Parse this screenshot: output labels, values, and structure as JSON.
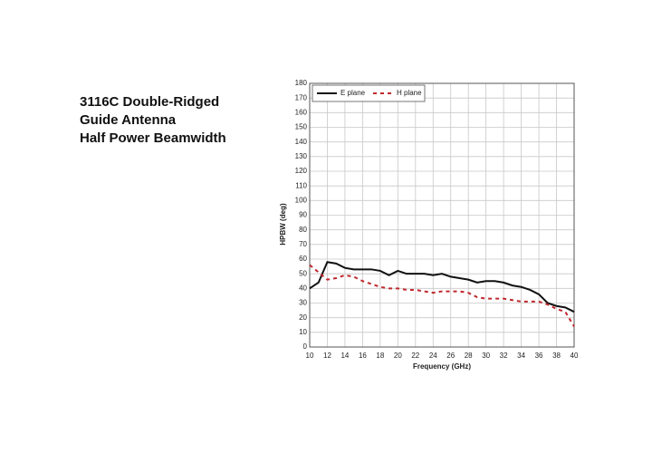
{
  "chart_data": {
    "type": "line",
    "title": [
      "3116C Double-Ridged",
      "Guide Antenna",
      "Half Power Beamwidth"
    ],
    "x_label": "Frequency (GHz)",
    "y_label": "HPBW (deg)",
    "x": [
      10,
      11,
      12,
      13,
      14,
      15,
      16,
      17,
      18,
      19,
      20,
      21,
      22,
      23,
      24,
      25,
      26,
      27,
      28,
      29,
      30,
      31,
      32,
      33,
      34,
      35,
      36,
      37,
      38,
      39,
      40
    ],
    "series": [
      {
        "name": "E plane",
        "color": "#111111",
        "dash": "solid",
        "values": [
          40,
          44,
          58,
          57,
          54,
          53,
          53,
          53,
          52,
          49,
          52,
          50,
          50,
          50,
          49,
          50,
          48,
          47,
          46,
          44,
          45,
          45,
          44,
          42,
          41,
          39,
          36,
          30,
          28,
          27,
          24
        ]
      },
      {
        "name": "H plane",
        "color": "#c0282d",
        "dash": "dashed",
        "values": [
          56,
          51,
          46,
          47,
          49,
          48,
          45,
          43,
          41,
          40,
          40,
          39,
          39,
          38,
          37,
          38,
          38,
          38,
          37,
          34,
          33,
          33,
          33,
          32,
          31,
          31,
          31,
          29,
          26,
          24,
          14
        ]
      }
    ],
    "xlim": [
      10,
      40
    ],
    "xticks": [
      10,
      12,
      14,
      16,
      18,
      20,
      22,
      24,
      26,
      28,
      30,
      32,
      34,
      36,
      38,
      40
    ],
    "ylim": [
      0,
      180
    ],
    "yticks": [
      0,
      10,
      20,
      30,
      40,
      50,
      60,
      70,
      80,
      90,
      100,
      110,
      120,
      130,
      140,
      150,
      160,
      170,
      180
    ],
    "grid": true,
    "legend": "top-left"
  }
}
